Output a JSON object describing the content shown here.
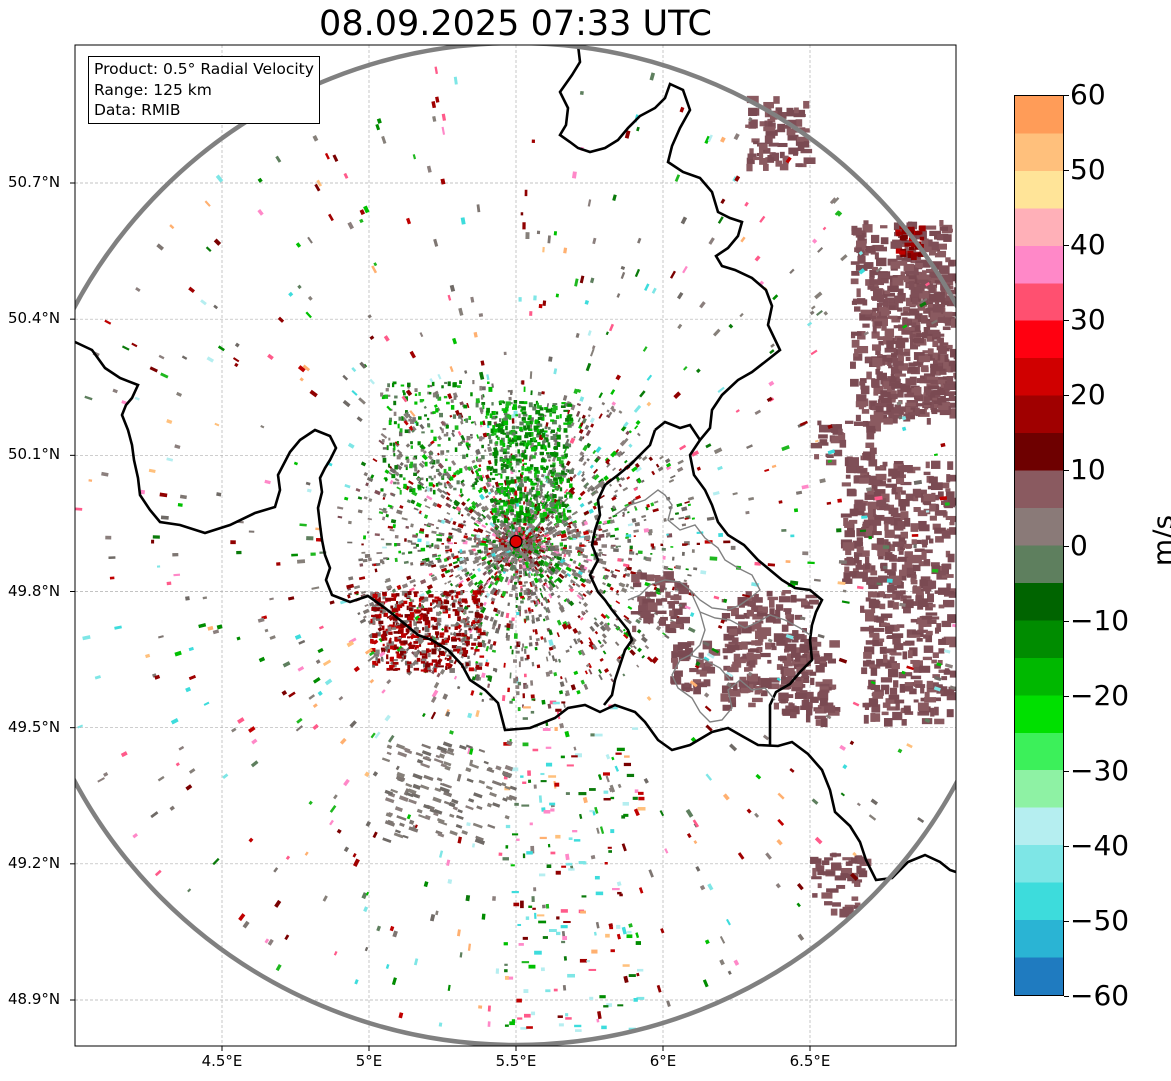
{
  "title": "08.09.2025 07:33 UTC",
  "info_box": {
    "product": "Product: 0.5° Radial Velocity",
    "range": "Range: 125 km",
    "source": "Data: RMIB"
  },
  "map": {
    "extent_lon": [
      4.0,
      7.0
    ],
    "extent_lat": [
      48.8,
      51.0
    ],
    "lon_ticks": [
      {
        "value": 4.5,
        "label": "4.5°E"
      },
      {
        "value": 5.0,
        "label": "5°E"
      },
      {
        "value": 5.5,
        "label": "5.5°E"
      },
      {
        "value": 6.0,
        "label": "6°E"
      },
      {
        "value": 6.5,
        "label": "6.5°E"
      }
    ],
    "lat_ticks": [
      {
        "value": 50.7,
        "label": "50.7°N"
      },
      {
        "value": 50.4,
        "label": "50.4°N"
      },
      {
        "value": 50.1,
        "label": "50.1°N"
      },
      {
        "value": 49.8,
        "label": "49.8°N"
      },
      {
        "value": 49.5,
        "label": "49.5°N"
      },
      {
        "value": 49.2,
        "label": "49.2°N"
      },
      {
        "value": 48.9,
        "label": "48.9°N"
      }
    ],
    "radar_site": {
      "lon": 5.5,
      "lat": 49.91,
      "color": "#e00000"
    },
    "gridlines": true
  },
  "colorbar": {
    "label": "m/s",
    "ticks": [
      {
        "value": 60,
        "label": "60"
      },
      {
        "value": 50,
        "label": "50"
      },
      {
        "value": 40,
        "label": "40"
      },
      {
        "value": 30,
        "label": "30"
      },
      {
        "value": 20,
        "label": "20"
      },
      {
        "value": 10,
        "label": "10"
      },
      {
        "value": 0,
        "label": "0"
      },
      {
        "value": -10,
        "label": "−10"
      },
      {
        "value": -20,
        "label": "−20"
      },
      {
        "value": -30,
        "label": "−30"
      },
      {
        "value": -40,
        "label": "−40"
      },
      {
        "value": -50,
        "label": "−50"
      },
      {
        "value": -60,
        "label": "−60"
      }
    ],
    "range": [
      -60,
      60
    ],
    "colors": [
      "#1f7bc0",
      "#2ab4d4",
      "#3ddcdc",
      "#7ee6e6",
      "#b5eef0",
      "#8ef2a4",
      "#3cf05a",
      "#00e000",
      "#00b800",
      "#008c00",
      "#006400",
      "#5e7f5e",
      "#8a7a78",
      "#8a5a60",
      "#6e0000",
      "#a00000",
      "#d00000",
      "#ff0010",
      "#ff5070",
      "#ff88c8",
      "#ffb0b8",
      "#ffe498",
      "#ffc07c",
      "#ff9c58"
    ]
  }
}
